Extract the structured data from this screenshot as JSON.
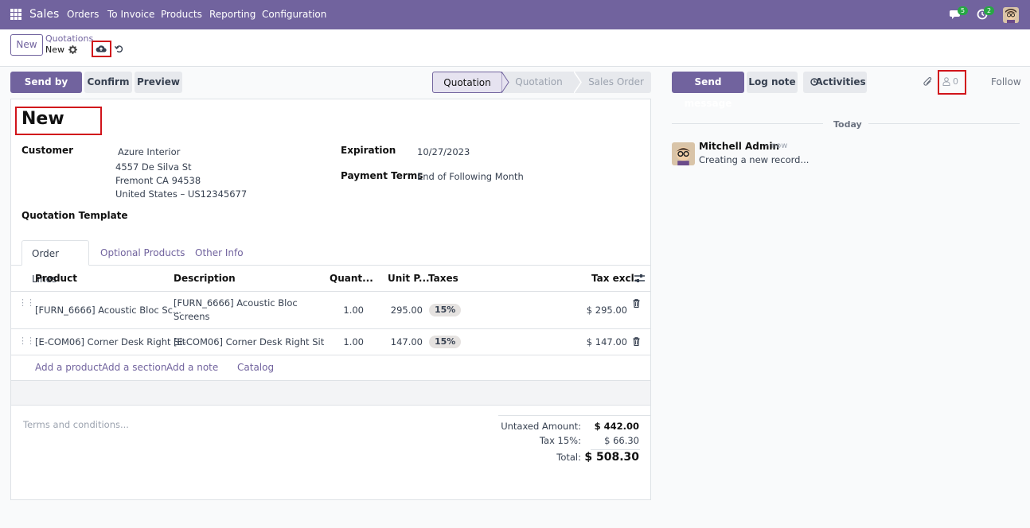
{
  "navbar": {
    "brand": "Sales",
    "menu": [
      "Orders",
      "To Invoice",
      "Products",
      "Reporting",
      "Configuration"
    ],
    "messages_count": "5",
    "activities_count": "2"
  },
  "control": {
    "new_label": "New",
    "breadcrumb_parent": "Quotations",
    "breadcrumb_current": "New"
  },
  "actions": {
    "send_email": "Send by Email",
    "confirm": "Confirm",
    "preview": "Preview"
  },
  "status": {
    "steps": [
      "Quotation",
      "Quotation Sent",
      "Sales Order"
    ],
    "active": "Quotation"
  },
  "form": {
    "title": "New",
    "customer_label": "Customer",
    "customer_name": "Azure Interior",
    "customer_address": [
      "4557 De Silva St",
      "Fremont CA 94538",
      "United States – US12345677"
    ],
    "expiration_label": "Expiration",
    "expiration_value": "10/27/2023",
    "payment_terms_label": "Payment Terms",
    "payment_terms_value": "End of Following Month",
    "quotation_template_label": "Quotation Template",
    "tabs": [
      "Order Lines",
      "Optional Products",
      "Other Info"
    ],
    "columns": [
      "Product",
      "Description",
      "Quant...",
      "Unit P...",
      "Taxes",
      "Tax excl."
    ],
    "lines": [
      {
        "product": "[FURN_6666] Acoustic Bloc Sc...",
        "description_1": "[FURN_6666] Acoustic Bloc",
        "description_2": "Screens",
        "quantity": "1.00",
        "unit_price": "295.00",
        "tax": "15%",
        "subtotal": "$ 295.00"
      },
      {
        "product": "[E-COM06] Corner Desk Right Sit",
        "description_1": "[E-COM06] Corner Desk Right Sit",
        "description_2": "",
        "quantity": "1.00",
        "unit_price": "147.00",
        "tax": "15%",
        "subtotal": "$ 147.00"
      }
    ],
    "add_links": [
      "Add a product",
      "Add a section",
      "Add a note",
      "Catalog"
    ],
    "terms_placeholder": "Terms and conditions...",
    "totals": {
      "untaxed_label": "Untaxed Amount:",
      "untaxed_value": "$ 442.00",
      "tax_label": "Tax 15%:",
      "tax_value": "$ 66.30",
      "total_label": "Total:",
      "total_value": "$ 508.30"
    }
  },
  "chatter": {
    "send_message": "Send message",
    "log_note": "Log note",
    "activities": "Activities",
    "followers_count": "0",
    "follow": "Follow",
    "date_separator": "Today",
    "message_author": "Mitchell Admin",
    "message_time": "- now",
    "message_body": "Creating a new record..."
  },
  "colors": {
    "brand": "#71639e",
    "highlight_box": "#d1141b"
  }
}
